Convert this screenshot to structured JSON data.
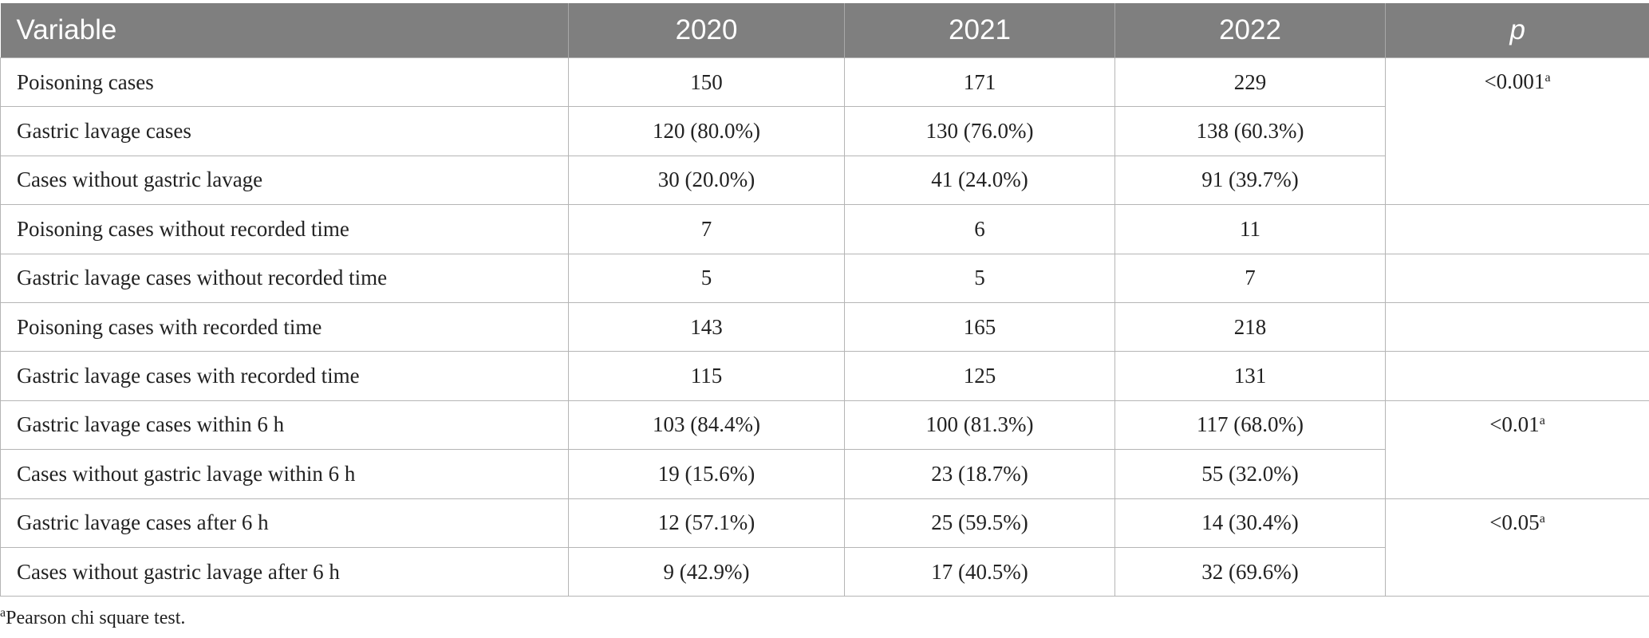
{
  "table": {
    "headers": [
      "Variable",
      "2020",
      "2021",
      "2022",
      "p"
    ],
    "rows": [
      {
        "variable": "Poisoning cases",
        "y2020": "150",
        "y2021": "171",
        "y2022": "229"
      },
      {
        "variable": "Gastric lavage cases",
        "y2020": "120 (80.0%)",
        "y2021": "130 (76.0%)",
        "y2022": "138 (60.3%)"
      },
      {
        "variable": "Cases without gastric lavage",
        "y2020": "30 (20.0%)",
        "y2021": "41 (24.0%)",
        "y2022": "91 (39.7%)"
      },
      {
        "variable": "Poisoning cases without recorded time",
        "y2020": "7",
        "y2021": "6",
        "y2022": "11"
      },
      {
        "variable": "Gastric lavage cases without recorded time",
        "y2020": "5",
        "y2021": "5",
        "y2022": "7"
      },
      {
        "variable": "Poisoning cases with recorded time",
        "y2020": "143",
        "y2021": "165",
        "y2022": "218"
      },
      {
        "variable": "Gastric lavage cases with recorded time",
        "y2020": "115",
        "y2021": "125",
        "y2022": "131"
      },
      {
        "variable": "Gastric lavage cases within 6 h",
        "y2020": "103 (84.4%)",
        "y2021": "100 (81.3%)",
        "y2022": "117 (68.0%)"
      },
      {
        "variable": "Cases without gastric lavage within 6 h",
        "y2020": "19 (15.6%)",
        "y2021": "23 (18.7%)",
        "y2022": "55 (32.0%)"
      },
      {
        "variable": "Gastric lavage cases after 6 h",
        "y2020": "12 (57.1%)",
        "y2021": "25 (59.5%)",
        "y2022": "14 (30.4%)"
      },
      {
        "variable": "Cases without gastric lavage after 6 h",
        "y2020": "9 (42.9%)",
        "y2021": "17 (40.5%)",
        "y2022": "32 (69.6%)"
      }
    ],
    "p_values": [
      {
        "value": "<0.001",
        "sup": "a"
      },
      {
        "value": "<0.01",
        "sup": "a"
      },
      {
        "value": "<0.05",
        "sup": "a"
      }
    ]
  },
  "footnote": {
    "mark": "a",
    "text": "Pearson chi square test."
  }
}
